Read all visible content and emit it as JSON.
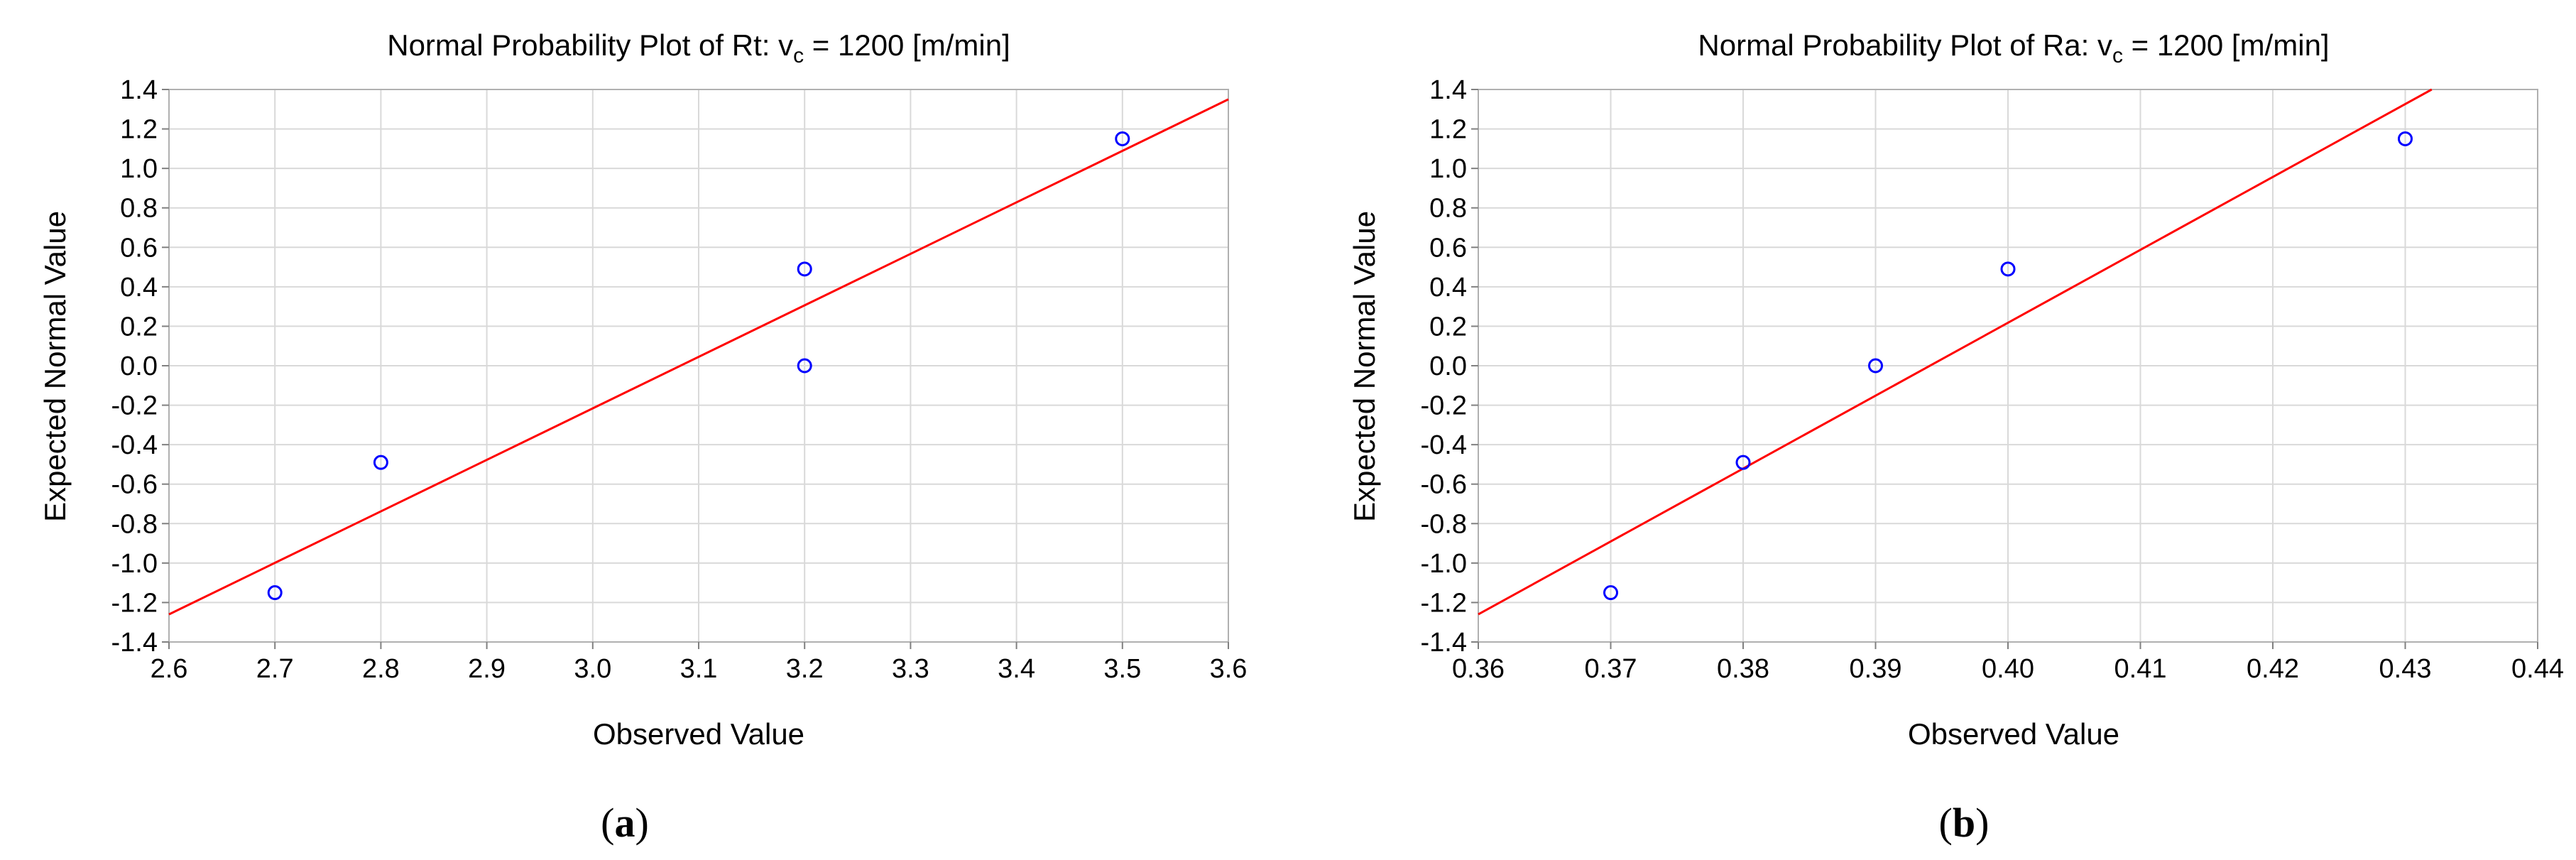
{
  "colors": {
    "points": "#0000ff",
    "fit_line": "#ff0000",
    "grid": "#d9d9d9"
  },
  "chart_data": [
    {
      "type": "scatter",
      "title": "Normal Probability Plot of Rt: v",
      "title_sub": "c",
      "title_rest": " = 1200 [m/min]",
      "xlabel": "Observed Value",
      "ylabel": "Expected Normal Value",
      "caption_bold": "a",
      "xlim": [
        2.6,
        3.6
      ],
      "ylim": [
        -1.4,
        1.4
      ],
      "xticks": [
        "2.6",
        "2.7",
        "2.8",
        "2.9",
        "3.0",
        "3.1",
        "3.2",
        "3.3",
        "3.4",
        "3.5",
        "3.6"
      ],
      "yticks": [
        "1.4",
        "1.2",
        "1.0",
        "0.8",
        "0.6",
        "0.4",
        "0.2",
        "0.0",
        "-0.2",
        "-0.4",
        "-0.6",
        "-0.8",
        "-1.0",
        "-1.2",
        "-1.4"
      ],
      "grid": true,
      "points": [
        {
          "x": 2.7,
          "y": -1.15
        },
        {
          "x": 2.8,
          "y": -0.49
        },
        {
          "x": 3.2,
          "y": 0.0
        },
        {
          "x": 3.2,
          "y": 0.49
        },
        {
          "x": 3.5,
          "y": 1.15
        }
      ],
      "fit_line": [
        {
          "x": 2.6,
          "y": -1.26
        },
        {
          "x": 3.6,
          "y": 1.35
        }
      ]
    },
    {
      "type": "scatter",
      "title": "Normal Probability Plot of Ra: v",
      "title_sub": "c",
      "title_rest": " = 1200 [m/min]",
      "xlabel": "Observed Value",
      "ylabel": "Expected Normal Value",
      "caption_bold": "b",
      "xlim": [
        0.36,
        0.44
      ],
      "ylim": [
        -1.4,
        1.4
      ],
      "xticks": [
        "0.36",
        "0.37",
        "0.38",
        "0.39",
        "0.40",
        "0.41",
        "0.42",
        "0.43",
        "0.44"
      ],
      "yticks": [
        "1.4",
        "1.2",
        "1.0",
        "0.8",
        "0.6",
        "0.4",
        "0.2",
        "0.0",
        "-0.2",
        "-0.4",
        "-0.6",
        "-0.8",
        "-1.0",
        "-1.2",
        "-1.4"
      ],
      "grid": true,
      "points": [
        {
          "x": 0.37,
          "y": -1.15
        },
        {
          "x": 0.38,
          "y": -0.49
        },
        {
          "x": 0.39,
          "y": 0.0
        },
        {
          "x": 0.4,
          "y": 0.49
        },
        {
          "x": 0.43,
          "y": 1.15
        }
      ],
      "fit_line": [
        {
          "x": 0.36,
          "y": -1.26
        },
        {
          "x": 0.432,
          "y": 1.4
        }
      ]
    }
  ]
}
